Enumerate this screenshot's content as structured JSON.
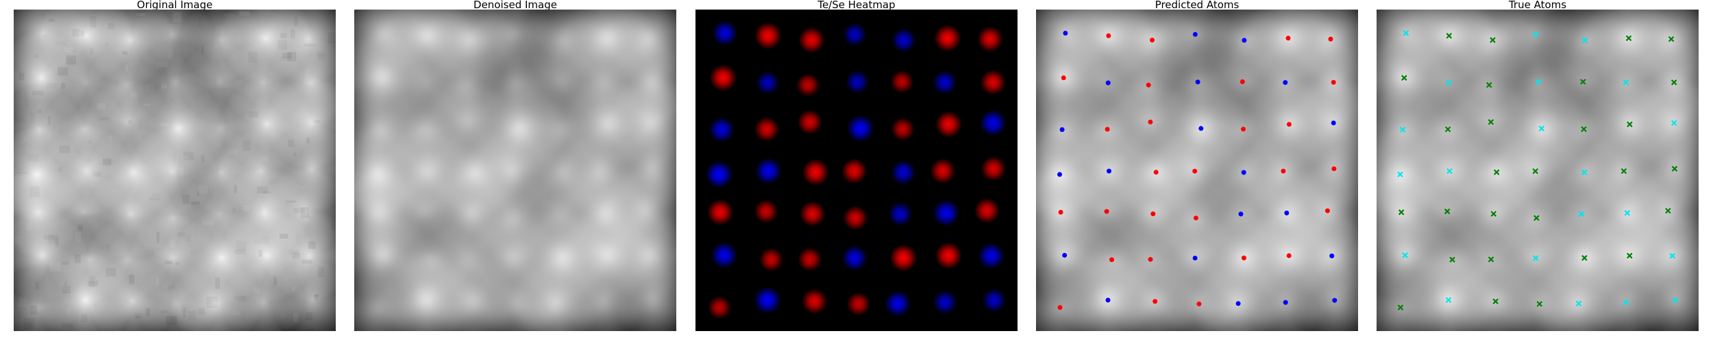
{
  "panels": [
    {
      "id": "original",
      "title": "Original Image",
      "kind": "grayscale",
      "variant": "noisy"
    },
    {
      "id": "denoised",
      "title": "Denoised Image",
      "kind": "grayscale",
      "variant": "smooth"
    },
    {
      "id": "heatmap",
      "title": "Te/Se Heatmap",
      "kind": "heatmap",
      "te_color": "#ff0000",
      "se_color": "#0000ff"
    },
    {
      "id": "predicted",
      "title": "Predicted Atoms",
      "kind": "overlay",
      "marker": "dot",
      "marker_colors": {
        "te": "#ff0000",
        "se": "#0000ff"
      }
    },
    {
      "id": "true",
      "title": "True Atoms",
      "kind": "overlay",
      "marker": "x",
      "marker_colors": {
        "te": "#008000",
        "se": "#00e5ee"
      }
    }
  ],
  "lattice": {
    "rows": [
      [
        "se",
        "te",
        "te",
        "se",
        "se",
        "te",
        "te"
      ],
      [
        "te",
        "se",
        "te",
        "se",
        "te",
        "se",
        "te"
      ],
      [
        "se",
        "te",
        "te",
        "se",
        "te",
        "te",
        "se"
      ],
      [
        "se",
        "se",
        "te",
        "te",
        "se",
        "te",
        "te"
      ],
      [
        "te",
        "te",
        "te",
        "te",
        "se",
        "se",
        "te"
      ],
      [
        "se",
        "te",
        "te",
        "se",
        "te",
        "te",
        "se"
      ],
      [
        "te",
        "se",
        "te",
        "te",
        "se",
        "se",
        "se"
      ]
    ]
  }
}
